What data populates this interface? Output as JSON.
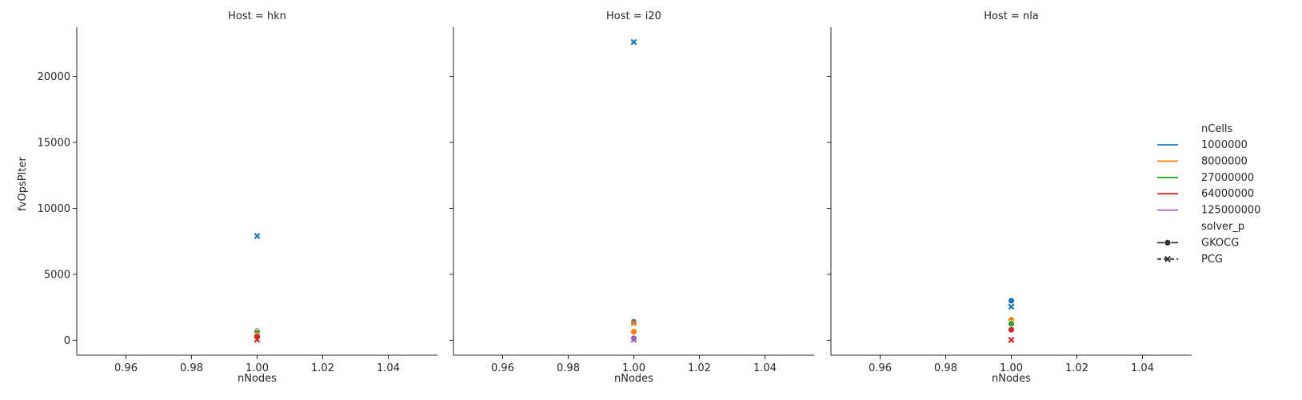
{
  "chart_data": {
    "type": "scatter",
    "ylabel": "fvOpsPIter",
    "xlabel": "nNodes",
    "xlim": [
      0.945,
      1.055
    ],
    "ylim": [
      -1130,
      23730
    ],
    "xticks": [
      "0.96",
      "0.98",
      "1.00",
      "1.02",
      "1.04"
    ],
    "xtick_values": [
      0.96,
      0.98,
      1.0,
      1.02,
      1.04
    ],
    "yticks": [
      "0",
      "5000",
      "10000",
      "15000",
      "20000"
    ],
    "ytick_values": [
      0,
      5000,
      10000,
      15000,
      20000
    ],
    "grid": false,
    "legend_placement": "right",
    "legend": {
      "hue_title": "nCells",
      "hue_entries": [
        {
          "label": "1000000",
          "color": "#1f77b4"
        },
        {
          "label": "8000000",
          "color": "#ff7f0e"
        },
        {
          "label": "27000000",
          "color": "#2ca02c"
        },
        {
          "label": "64000000",
          "color": "#d62728"
        },
        {
          "label": "125000000",
          "color": "#9467bd"
        }
      ],
      "style_title": "solver_p",
      "style_entries": [
        {
          "label": "GKOCG",
          "marker": "circle",
          "dash": "solid"
        },
        {
          "label": "PCG",
          "marker": "x",
          "dash": "dashed"
        }
      ]
    },
    "panels": [
      {
        "title": "Host = hkn",
        "points": [
          {
            "x": 1.0,
            "y": 7900,
            "nCells": "1000000",
            "solver_p": "PCG"
          },
          {
            "x": 1.0,
            "y": 700,
            "nCells": "1000000",
            "solver_p": "GKOCG"
          },
          {
            "x": 1.0,
            "y": 600,
            "nCells": "8000000",
            "solver_p": "GKOCG"
          },
          {
            "x": 1.0,
            "y": 550,
            "nCells": "27000000",
            "solver_p": "PCG"
          },
          {
            "x": 1.0,
            "y": 300,
            "nCells": "64000000",
            "solver_p": "GKOCG"
          },
          {
            "x": 1.0,
            "y": 50,
            "nCells": "64000000",
            "solver_p": "PCG"
          }
        ]
      },
      {
        "title": "Host = i20",
        "points": [
          {
            "x": 1.0,
            "y": 22600,
            "nCells": "1000000",
            "solver_p": "PCG"
          },
          {
            "x": 1.0,
            "y": 1400,
            "nCells": "1000000",
            "solver_p": "GKOCG"
          },
          {
            "x": 1.0,
            "y": 1300,
            "nCells": "8000000",
            "solver_p": "PCG"
          },
          {
            "x": 1.0,
            "y": 650,
            "nCells": "8000000",
            "solver_p": "GKOCG"
          },
          {
            "x": 1.0,
            "y": 150,
            "nCells": "125000000",
            "solver_p": "GKOCG"
          },
          {
            "x": 1.0,
            "y": 40,
            "nCells": "125000000",
            "solver_p": "PCG"
          }
        ]
      },
      {
        "title": "Host = nla",
        "points": [
          {
            "x": 1.0,
            "y": 3000,
            "nCells": "1000000",
            "solver_p": "GKOCG"
          },
          {
            "x": 1.0,
            "y": 2550,
            "nCells": "1000000",
            "solver_p": "PCG"
          },
          {
            "x": 1.0,
            "y": 1550,
            "nCells": "8000000",
            "solver_p": "GKOCG"
          },
          {
            "x": 1.0,
            "y": 1250,
            "nCells": "27000000",
            "solver_p": "GKOCG"
          },
          {
            "x": 1.0,
            "y": 800,
            "nCells": "64000000",
            "solver_p": "GKOCG"
          },
          {
            "x": 1.0,
            "y": 30,
            "nCells": "64000000",
            "solver_p": "PCG"
          }
        ]
      }
    ]
  }
}
